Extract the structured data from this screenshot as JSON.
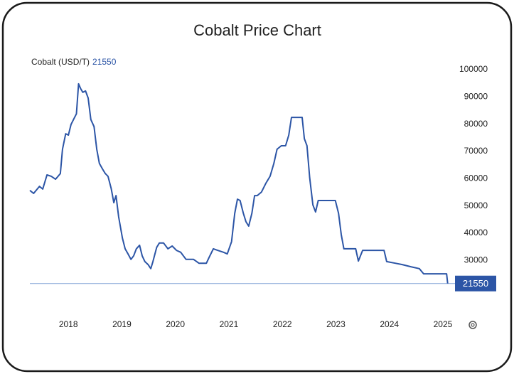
{
  "chart_data": {
    "type": "line",
    "title": "Cobalt Price Chart",
    "last_value": 21550,
    "series": [
      {
        "name": "Cobalt (USD/T)",
        "color": "#2c55a6",
        "x": [
          2017.28,
          2017.35,
          2017.46,
          2017.52,
          2017.6,
          2017.68,
          2017.76,
          2017.85,
          2017.89,
          2017.95,
          2018.0,
          2018.05,
          2018.11,
          2018.15,
          2018.19,
          2018.23,
          2018.27,
          2018.32,
          2018.37,
          2018.42,
          2018.48,
          2018.53,
          2018.58,
          2018.64,
          2018.69,
          2018.74,
          2018.8,
          2018.85,
          2018.89,
          2018.94,
          2019.01,
          2019.06,
          2019.12,
          2019.17,
          2019.22,
          2019.27,
          2019.33,
          2019.38,
          2019.43,
          2019.49,
          2019.54,
          2019.58,
          2019.65,
          2019.7,
          2019.78,
          2019.86,
          2019.94,
          2020.02,
          2020.1,
          2020.2,
          2020.34,
          2020.44,
          2020.58,
          2020.63,
          2020.71,
          2020.79,
          2020.9,
          2020.97,
          2021.05,
          2021.11,
          2021.16,
          2021.21,
          2021.27,
          2021.32,
          2021.37,
          2021.43,
          2021.48,
          2021.53,
          2021.61,
          2021.69,
          2021.77,
          2021.84,
          2021.9,
          2021.98,
          2022.06,
          2022.12,
          2022.17,
          2022.37,
          2022.41,
          2022.46,
          2022.51,
          2022.57,
          2022.62,
          2022.67,
          2022.99,
          2023.05,
          2023.1,
          2023.15,
          2023.37,
          2023.42,
          2023.5,
          2023.9,
          2023.95,
          2024.11,
          2024.24,
          2024.4,
          2024.56,
          2024.64,
          2025.07,
          2025.09
        ],
        "values": [
          55700,
          54600,
          57200,
          56200,
          61400,
          60900,
          59800,
          61900,
          70800,
          76500,
          76000,
          79900,
          82300,
          83800,
          94800,
          93000,
          91700,
          92200,
          89600,
          81700,
          79100,
          70800,
          65600,
          63500,
          61900,
          60900,
          56400,
          51200,
          53800,
          46000,
          38200,
          34300,
          32200,
          30400,
          31700,
          34300,
          35600,
          31700,
          29600,
          28500,
          27000,
          29600,
          34800,
          36400,
          36400,
          34300,
          35300,
          33700,
          33000,
          30400,
          30400,
          29000,
          29000,
          31100,
          34300,
          33700,
          33000,
          32400,
          36900,
          47300,
          52500,
          52000,
          47300,
          44200,
          42600,
          47300,
          53800,
          53800,
          55100,
          58300,
          60900,
          65600,
          70800,
          72100,
          72100,
          76000,
          82500,
          82500,
          74700,
          72100,
          60400,
          50400,
          47800,
          52000,
          52000,
          47300,
          39500,
          34300,
          34300,
          29800,
          33700,
          33700,
          29600,
          29000,
          28500,
          27700,
          27000,
          25100,
          25100,
          21550
        ]
      }
    ],
    "xlim": [
      2017.28,
      2025.16
    ],
    "xticks": [
      2018,
      2019,
      2020,
      2021,
      2022,
      2023,
      2024,
      2025
    ],
    "ylim": [
      10000,
      100000
    ],
    "yticks": [
      30000,
      40000,
      50000,
      60000,
      70000,
      80000,
      90000,
      100000
    ],
    "grid": false
  }
}
